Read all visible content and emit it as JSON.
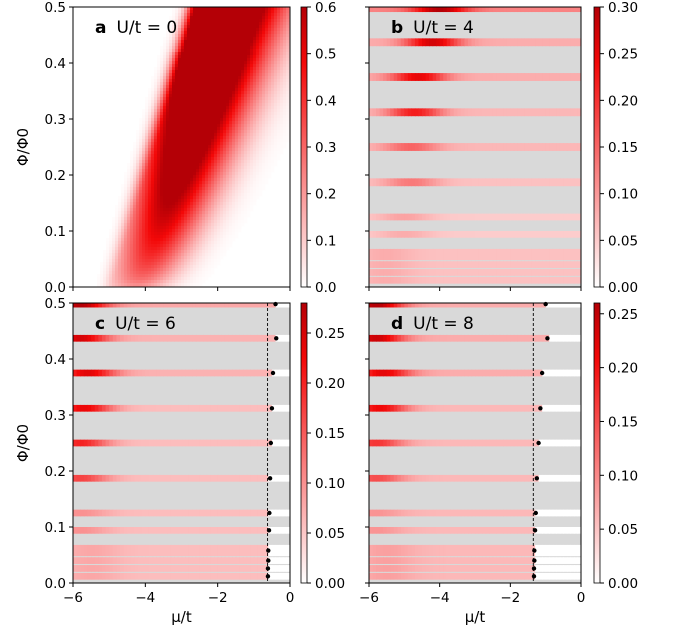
{
  "chart_data": [
    {
      "type": "heatmap",
      "panel_letter": "a",
      "panel_title": "U/t = 0",
      "xlabel": "",
      "ylabel": "Φ/Φ0",
      "xlim": [
        -6,
        0
      ],
      "ylim": [
        0,
        0.5
      ],
      "xticks": [],
      "yticks": [
        "0.0",
        "0.1",
        "0.2",
        "0.3",
        "0.4",
        "0.5"
      ],
      "colorbar": {
        "min": 0,
        "max": 0.6,
        "ticks": [
          "0.0",
          "0.1",
          "0.2",
          "0.3",
          "0.4",
          "0.5",
          "0.6"
        ],
        "colormap": "white-red"
      },
      "gap_color": "#d9d9d9",
      "ridges": [
        {
          "x_at_top": -2.3,
          "x_at_bottom": -4.5,
          "peak": 0.6
        },
        {
          "x_at_top": -1.6,
          "x_at_bottom": -4.2,
          "peak": 0.38
        },
        {
          "x_at_top": -0.9,
          "x_at_bottom": -3.8,
          "peak": 0.28
        }
      ],
      "bands": [],
      "boundary": null
    },
    {
      "type": "heatmap",
      "panel_letter": "b",
      "panel_title": "U/t = 4",
      "xlabel": "",
      "ylabel": "",
      "xlim": [
        -6,
        0
      ],
      "ylim": [
        0,
        0.5
      ],
      "xticks": [],
      "yticks": [],
      "colorbar": {
        "min": 0,
        "max": 0.3,
        "ticks": [
          "0.00",
          "0.05",
          "0.10",
          "0.15",
          "0.20",
          "0.25",
          "0.30"
        ],
        "colormap": "white-red"
      },
      "gap_color": "#d9d9d9",
      "ridges": [],
      "bands": [
        {
          "flux": 0.498,
          "width": 0.007,
          "peak_mu": -4.0,
          "peak": 0.3,
          "base": 0.12
        },
        {
          "flux": 0.437,
          "width": 0.007,
          "peak_mu": -4.2,
          "peak": 0.27,
          "base": 0.08
        },
        {
          "flux": 0.375,
          "width": 0.007,
          "peak_mu": -4.6,
          "peak": 0.25,
          "base": 0.08
        },
        {
          "flux": 0.312,
          "width": 0.007,
          "peak_mu": -4.7,
          "peak": 0.22,
          "base": 0.07
        },
        {
          "flux": 0.25,
          "width": 0.007,
          "peak_mu": -4.8,
          "peak": 0.15,
          "base": 0.07
        },
        {
          "flux": 0.187,
          "width": 0.007,
          "peak_mu": -4.8,
          "peak": 0.13,
          "base": 0.06
        },
        {
          "flux": 0.125,
          "width": 0.006,
          "peak_mu": -5.0,
          "peak": 0.09,
          "base": 0.05
        },
        {
          "flux": 0.094,
          "width": 0.006,
          "peak_mu": -5.0,
          "peak": 0.08,
          "base": 0.05
        },
        {
          "flux": 0.058,
          "width": 0.01,
          "peak_mu": -5.5,
          "peak": 0.08,
          "base": 0.06
        },
        {
          "flux": 0.04,
          "width": 0.006,
          "peak_mu": -5.5,
          "peak": 0.08,
          "base": 0.06
        },
        {
          "flux": 0.026,
          "width": 0.006,
          "peak_mu": -5.5,
          "peak": 0.08,
          "base": 0.06
        },
        {
          "flux": 0.012,
          "width": 0.006,
          "peak_mu": -5.5,
          "peak": 0.08,
          "base": 0.06
        }
      ],
      "boundary": null
    },
    {
      "type": "heatmap",
      "panel_letter": "c",
      "panel_title": "U/t = 6",
      "xlabel": "μ/t",
      "ylabel": "Φ/Φ0",
      "xlim": [
        -6,
        0
      ],
      "ylim": [
        0,
        0.5
      ],
      "xticks": [
        "−6",
        "−4",
        "−2",
        "0"
      ],
      "yticks": [
        "0.0",
        "0.1",
        "0.2",
        "0.3",
        "0.4",
        "0.5"
      ],
      "colorbar": {
        "min": 0,
        "max": 0.28,
        "ticks": [
          "0.00",
          "0.05",
          "0.10",
          "0.15",
          "0.20",
          "0.25"
        ],
        "colormap": "white-red"
      },
      "gap_color": "#d9d9d9",
      "ridges": [],
      "bands": [
        {
          "flux": 0.498,
          "width": 0.006,
          "peak_mu": -5.8,
          "peak": 0.28,
          "base": 0.08
        },
        {
          "flux": 0.437,
          "width": 0.006,
          "peak_mu": -5.8,
          "peak": 0.25,
          "base": 0.07
        },
        {
          "flux": 0.375,
          "width": 0.006,
          "peak_mu": -5.6,
          "peak": 0.24,
          "base": 0.07
        },
        {
          "flux": 0.312,
          "width": 0.006,
          "peak_mu": -5.7,
          "peak": 0.23,
          "base": 0.06
        },
        {
          "flux": 0.25,
          "width": 0.006,
          "peak_mu": -5.8,
          "peak": 0.2,
          "base": 0.06
        },
        {
          "flux": 0.187,
          "width": 0.006,
          "peak_mu": -5.8,
          "peak": 0.17,
          "base": 0.06
        },
        {
          "flux": 0.125,
          "width": 0.006,
          "peak_mu": -5.8,
          "peak": 0.1,
          "base": 0.06
        },
        {
          "flux": 0.094,
          "width": 0.006,
          "peak_mu": -5.8,
          "peak": 0.1,
          "base": 0.06
        },
        {
          "flux": 0.058,
          "width": 0.01,
          "peak_mu": -5.5,
          "peak": 0.08,
          "base": 0.06
        },
        {
          "flux": 0.04,
          "width": 0.006,
          "peak_mu": -5.5,
          "peak": 0.08,
          "base": 0.06
        },
        {
          "flux": 0.026,
          "width": 0.006,
          "peak_mu": -5.5,
          "peak": 0.08,
          "base": 0.06
        },
        {
          "flux": 0.012,
          "width": 0.006,
          "peak_mu": -5.5,
          "peak": 0.08,
          "base": 0.06
        }
      ],
      "boundary": {
        "dashed_mu": -0.62,
        "points": [
          {
            "mu": -0.4,
            "flux": 0.498
          },
          {
            "mu": -0.38,
            "flux": 0.437
          },
          {
            "mu": -0.47,
            "flux": 0.375
          },
          {
            "mu": -0.5,
            "flux": 0.312
          },
          {
            "mu": -0.53,
            "flux": 0.25
          },
          {
            "mu": -0.55,
            "flux": 0.187
          },
          {
            "mu": -0.57,
            "flux": 0.125
          },
          {
            "mu": -0.58,
            "flux": 0.094
          },
          {
            "mu": -0.6,
            "flux": 0.058
          },
          {
            "mu": -0.6,
            "flux": 0.04
          },
          {
            "mu": -0.61,
            "flux": 0.026
          },
          {
            "mu": -0.61,
            "flux": 0.012
          }
        ]
      }
    },
    {
      "type": "heatmap",
      "panel_letter": "d",
      "panel_title": "U/t = 8",
      "xlabel": "μ/t",
      "ylabel": "",
      "xlim": [
        -6,
        0
      ],
      "ylim": [
        0,
        0.5
      ],
      "xticks": [
        "−6",
        "−4",
        "−2",
        "0"
      ],
      "yticks": [],
      "colorbar": {
        "min": 0,
        "max": 0.26,
        "ticks": [
          "0.00",
          "0.05",
          "0.10",
          "0.15",
          "0.20",
          "0.25"
        ],
        "colormap": "white-red"
      },
      "gap_color": "#d9d9d9",
      "ridges": [],
      "bands": [
        {
          "flux": 0.498,
          "width": 0.006,
          "peak_mu": -5.8,
          "peak": 0.26,
          "base": 0.07
        },
        {
          "flux": 0.437,
          "width": 0.006,
          "peak_mu": -5.8,
          "peak": 0.24,
          "base": 0.07
        },
        {
          "flux": 0.375,
          "width": 0.006,
          "peak_mu": -5.6,
          "peak": 0.22,
          "base": 0.07
        },
        {
          "flux": 0.312,
          "width": 0.006,
          "peak_mu": -5.7,
          "peak": 0.21,
          "base": 0.06
        },
        {
          "flux": 0.25,
          "width": 0.006,
          "peak_mu": -5.8,
          "peak": 0.17,
          "base": 0.06
        },
        {
          "flux": 0.187,
          "width": 0.006,
          "peak_mu": -5.8,
          "peak": 0.15,
          "base": 0.06
        },
        {
          "flux": 0.125,
          "width": 0.006,
          "peak_mu": -5.8,
          "peak": 0.09,
          "base": 0.06
        },
        {
          "flux": 0.094,
          "width": 0.006,
          "peak_mu": -5.8,
          "peak": 0.09,
          "base": 0.06
        },
        {
          "flux": 0.058,
          "width": 0.01,
          "peak_mu": -5.5,
          "peak": 0.08,
          "base": 0.06
        },
        {
          "flux": 0.04,
          "width": 0.006,
          "peak_mu": -5.5,
          "peak": 0.08,
          "base": 0.06
        },
        {
          "flux": 0.026,
          "width": 0.006,
          "peak_mu": -5.5,
          "peak": 0.08,
          "base": 0.06
        },
        {
          "flux": 0.012,
          "width": 0.006,
          "peak_mu": -5.5,
          "peak": 0.08,
          "base": 0.06
        }
      ],
      "boundary": {
        "dashed_mu": -1.35,
        "points": [
          {
            "mu": -1.0,
            "flux": 0.498
          },
          {
            "mu": -0.95,
            "flux": 0.437
          },
          {
            "mu": -1.1,
            "flux": 0.375
          },
          {
            "mu": -1.15,
            "flux": 0.312
          },
          {
            "mu": -1.2,
            "flux": 0.25
          },
          {
            "mu": -1.25,
            "flux": 0.187
          },
          {
            "mu": -1.28,
            "flux": 0.125
          },
          {
            "mu": -1.3,
            "flux": 0.094
          },
          {
            "mu": -1.32,
            "flux": 0.058
          },
          {
            "mu": -1.32,
            "flux": 0.04
          },
          {
            "mu": -1.33,
            "flux": 0.026
          },
          {
            "mu": -1.33,
            "flux": 0.012
          }
        ]
      }
    }
  ]
}
